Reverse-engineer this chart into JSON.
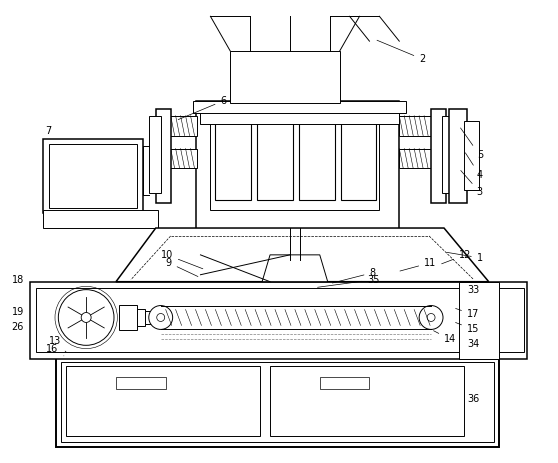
{
  "bg_color": "#ffffff",
  "lw": 0.7,
  "lw2": 1.1,
  "lw3": 1.4,
  "fs": 7.0
}
